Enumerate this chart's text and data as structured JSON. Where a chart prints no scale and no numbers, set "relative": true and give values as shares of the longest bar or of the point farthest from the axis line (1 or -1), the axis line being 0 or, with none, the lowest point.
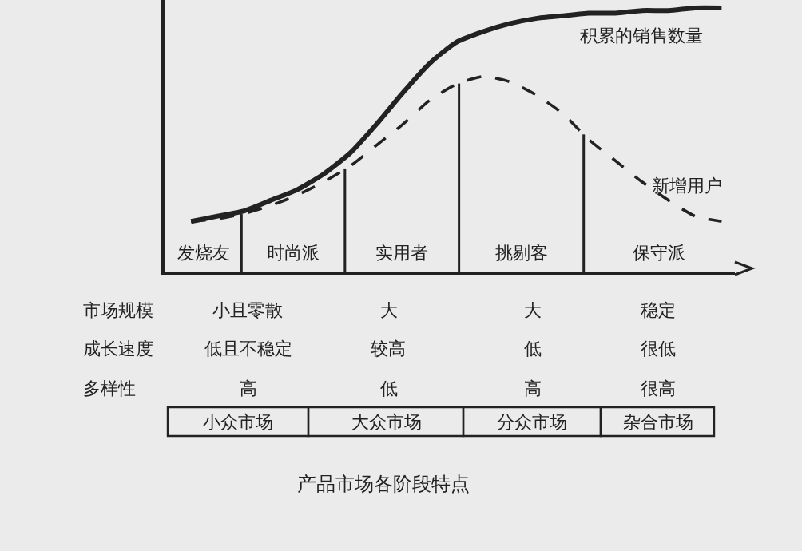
{
  "chart_data": {
    "type": "line",
    "relative": true,
    "title": "产品市场各阶段特点",
    "legend": false,
    "marker": "none",
    "categories": [
      null,
      null,
      null,
      null,
      null,
      null,
      null,
      null,
      null,
      null,
      null,
      null,
      null,
      null,
      null,
      null,
      null,
      null,
      null,
      null,
      null
    ],
    "series": [
      {
        "name": "积累的销售数量",
        "color": "#222222",
        "line_style": "solid",
        "values": [
          0.19,
          0.21,
          0.23,
          0.27,
          0.31,
          0.37,
          0.45,
          0.56,
          0.68,
          0.79,
          0.87,
          0.91,
          0.94,
          0.96,
          0.97,
          0.98,
          0.98,
          0.99,
          0.99,
          1,
          1
        ]
      },
      {
        "name": "新增用户",
        "color": "#222222",
        "line_style": "dashed",
        "values": [
          0.19,
          0.2,
          0.22,
          0.25,
          0.29,
          0.34,
          0.4,
          0.48,
          0.56,
          0.65,
          0.71,
          0.74,
          0.72,
          0.67,
          0.6,
          0.5,
          0.42,
          0.34,
          0.27,
          0.21,
          0.19
        ]
      }
    ],
    "annotations": [
      "发烧友",
      "时尚派",
      "实用者",
      "挑剔客",
      "保守派",
      "市场规模",
      "成长速度",
      "多样性",
      "小且零散",
      "大",
      "大",
      "稳定",
      "低且不稳定",
      "较高",
      "低",
      "很低",
      "高",
      "低",
      "高",
      "很高",
      "小众市场",
      "大众市场",
      "分众市场",
      "杂合市场"
    ]
  }
}
